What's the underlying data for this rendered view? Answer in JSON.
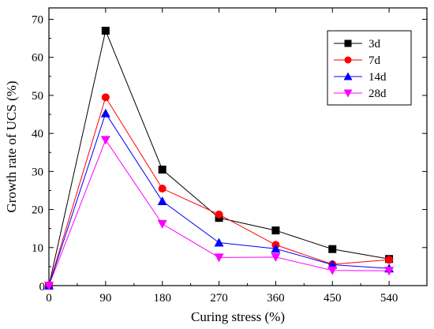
{
  "chart_data": {
    "type": "line",
    "xlabel": "Curing stress (%)",
    "ylabel": "Growth rate of UCS (%)",
    "x": [
      0,
      90,
      180,
      270,
      360,
      450,
      540
    ],
    "xticks": [
      "0",
      "90",
      "180",
      "270",
      "360",
      "450",
      "540"
    ],
    "yticks": [
      "10",
      "20",
      "30",
      "40",
      "50",
      "60",
      "70"
    ],
    "xlim": [
      0,
      600
    ],
    "ylim": [
      0,
      73
    ],
    "grid": false,
    "legend_position": "top-right",
    "series": [
      {
        "name": "3d",
        "color": "#000000",
        "marker": "square",
        "values": [
          0,
          67,
          30.5,
          17.8,
          14.5,
          9.6,
          7.0
        ]
      },
      {
        "name": "7d",
        "color": "#ff0000",
        "marker": "circle",
        "values": [
          0,
          49.5,
          25.5,
          18.7,
          10.7,
          5.6,
          6.8
        ]
      },
      {
        "name": "14d",
        "color": "#0000ff",
        "marker": "triangle-up",
        "values": [
          0,
          45.3,
          22.2,
          11.3,
          9.7,
          5.5,
          4.5
        ]
      },
      {
        "name": "28d",
        "color": "#ff00ff",
        "marker": "triangle-down",
        "values": [
          0,
          38.3,
          16.2,
          7.4,
          7.5,
          4.0,
          3.9
        ]
      }
    ]
  }
}
